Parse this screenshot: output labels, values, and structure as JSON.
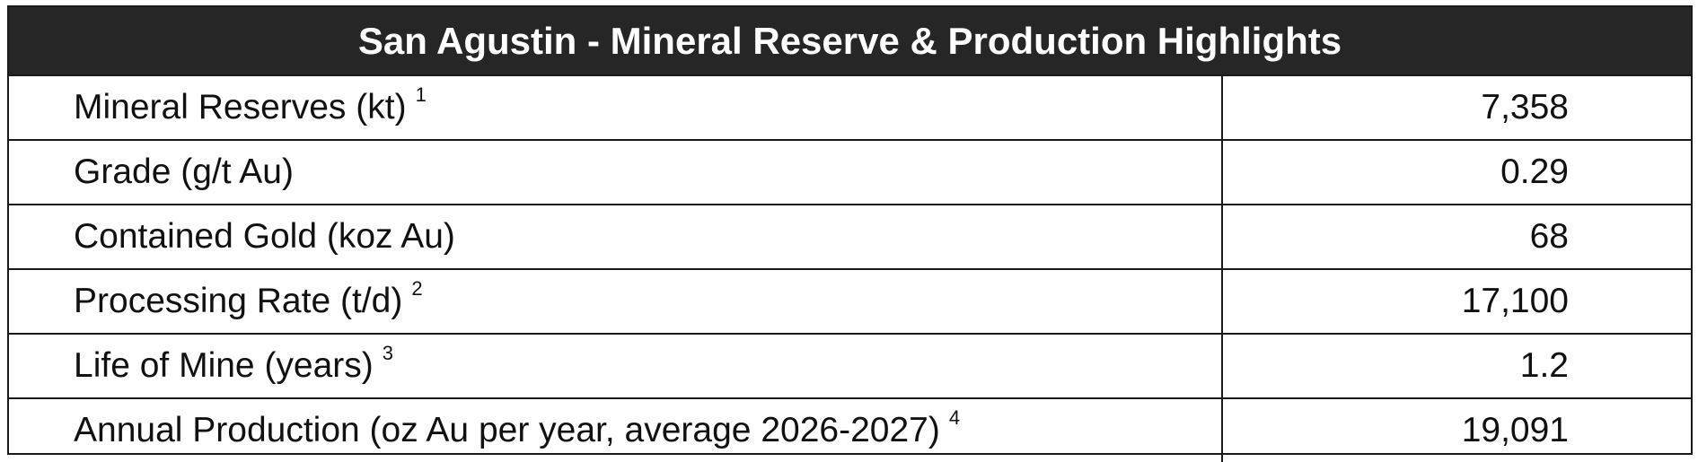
{
  "table": {
    "title": "San Agustin - Mineral Reserve & Production Highlights",
    "rows": [
      {
        "label": "Mineral Reserves (kt)",
        "note": "1",
        "value": "7,358"
      },
      {
        "label": "Grade (g/t Au)",
        "note": "",
        "value": "0.29"
      },
      {
        "label": "Contained Gold (koz Au)",
        "note": "",
        "value": "68"
      },
      {
        "label": "Processing Rate (t/d)",
        "note": "2",
        "value": "17,100"
      },
      {
        "label": "Life of Mine (years)",
        "note": "3",
        "value": "1.2"
      },
      {
        "label": "Annual Production (oz Au per year, average 2026-2027)",
        "note": "4",
        "value": "19,091"
      }
    ]
  }
}
